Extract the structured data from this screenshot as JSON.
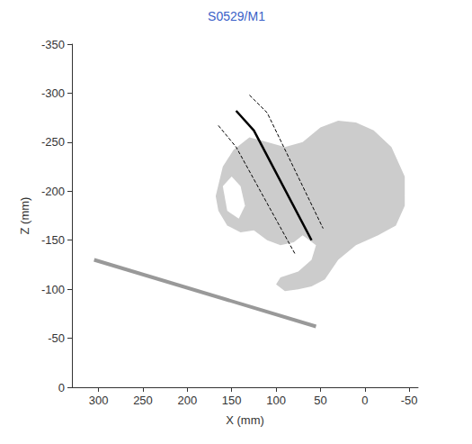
{
  "chart_data": {
    "type": "line",
    "title": "S0529/M1",
    "x_label": "X (mm)",
    "y_label": "Z (mm)",
    "xlim": [
      330,
      -60
    ],
    "ylim": [
      0,
      -350
    ],
    "xticks": [
      300,
      250,
      200,
      150,
      100,
      50,
      0,
      -50
    ],
    "yticks": [
      0,
      -50,
      -100,
      -150,
      -200,
      -250,
      -300,
      -350
    ],
    "grid": false,
    "series": [
      {
        "type": "polygon",
        "color": "#cccccc",
        "x": [
          168,
          160,
          148,
          130,
          110,
          90,
          70,
          50,
          30,
          10,
          -10,
          -30,
          -45,
          -45,
          -35,
          -15,
          10,
          30,
          45,
          60,
          75,
          90,
          100,
          95,
          75,
          60,
          55,
          70,
          80,
          95,
          110,
          125,
          140,
          155,
          165
        ],
        "y": [
          -195,
          -225,
          -242,
          -255,
          -250,
          -245,
          -250,
          -265,
          -272,
          -270,
          -262,
          -245,
          -215,
          -185,
          -165,
          -155,
          -145,
          -130,
          -110,
          -103,
          -100,
          -98,
          -105,
          -112,
          -118,
          -130,
          -145,
          -155,
          -148,
          -145,
          -150,
          -160,
          -158,
          -165,
          -180
        ]
      },
      {
        "type": "polygon",
        "color": "#ffffff",
        "x": [
          160,
          150,
          140,
          135,
          142,
          155
        ],
        "y": [
          -205,
          -215,
          -205,
          -185,
          -172,
          -180
        ]
      },
      {
        "type": "line",
        "color": "#999999",
        "line_style": "solid",
        "x": [
          305,
          55
        ],
        "y": [
          -130,
          -62
        ]
      },
      {
        "type": "line",
        "color": "#000000",
        "line_style": "solid",
        "x": [
          145,
          125,
          60
        ],
        "y": [
          -282,
          -262,
          -150
        ]
      },
      {
        "type": "line",
        "color": "#000000",
        "line_style": "dashed",
        "x": [
          130,
          110,
          47
        ],
        "y": [
          -298,
          -280,
          -162
        ]
      },
      {
        "type": "line",
        "color": "#000000",
        "line_style": "dashed",
        "x": [
          165,
          145,
          78
        ],
        "y": [
          -267,
          -245,
          -135
        ]
      }
    ]
  }
}
